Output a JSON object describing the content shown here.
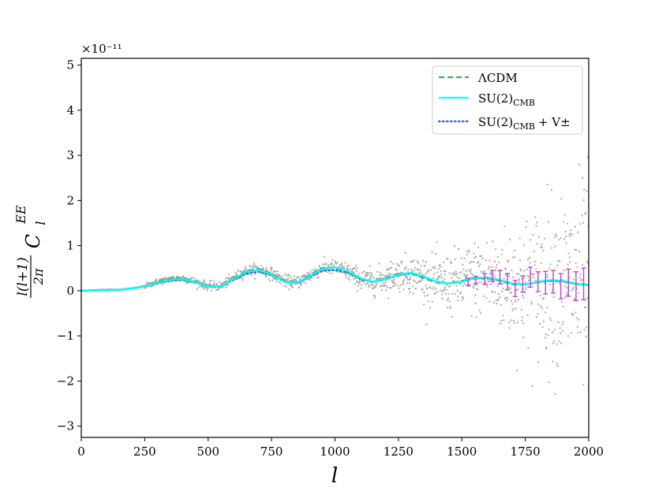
{
  "chart_data": {
    "type": "scatter",
    "title": "",
    "xlabel": "l",
    "ylabel": "l(l+1)/2π C_l^EE",
    "ylabel_parts": {
      "num": "l(l+1)",
      "den": "2π",
      "sym": "C",
      "sup": "EE",
      "sub": "l"
    },
    "y_offset_text": "×10⁻¹¹",
    "xlim": [
      0,
      2000
    ],
    "ylim": [
      -3.25,
      5.15
    ],
    "x_ticks": [
      0,
      250,
      500,
      750,
      1000,
      1250,
      1500,
      1750,
      2000
    ],
    "x_tick_labels": [
      "0",
      "250",
      "500",
      "750",
      "1000",
      "1250",
      "1500",
      "1750",
      "2000"
    ],
    "y_ticks": [
      -3,
      -2,
      -1,
      0,
      1,
      2,
      3,
      4,
      5
    ],
    "y_tick_labels": [
      "−3",
      "−2",
      "−1",
      "0",
      "1",
      "2",
      "3",
      "4",
      "5"
    ],
    "grid": false,
    "legend_position": "top-right",
    "legend": [
      {
        "label": "ΛCDM",
        "style": "dashed",
        "color": "#3fae5e"
      },
      {
        "label": "SU(2)_CMB",
        "label_main": "SU(2)",
        "label_sub": "CMB",
        "style": "solid",
        "color": "#00ffff"
      },
      {
        "label": "SU(2)_CMB + V±",
        "label_main": "SU(2)",
        "label_sub": "CMB",
        "label_extra": "+ V±",
        "style": "dotted",
        "color": "#4466cc"
      }
    ],
    "series": [
      {
        "name": "ΛCDM",
        "style": "dashed",
        "color": "#3fae5e",
        "x": [
          2,
          50,
          100,
          150,
          200,
          250,
          300,
          350,
          400,
          450,
          500,
          550,
          600,
          650,
          700,
          750,
          800,
          850,
          900,
          950,
          1000,
          1050,
          1100,
          1150,
          1200,
          1250,
          1300,
          1350,
          1400,
          1450,
          1500,
          1550,
          1600,
          1650,
          1700,
          1750,
          1800,
          1850,
          1900,
          1950,
          2000
        ],
        "y": [
          0.0,
          0.01,
          0.02,
          0.02,
          0.05,
          0.1,
          0.2,
          0.26,
          0.28,
          0.2,
          0.1,
          0.1,
          0.28,
          0.44,
          0.48,
          0.38,
          0.22,
          0.18,
          0.34,
          0.5,
          0.52,
          0.42,
          0.26,
          0.2,
          0.28,
          0.38,
          0.38,
          0.28,
          0.18,
          0.16,
          0.22,
          0.28,
          0.28,
          0.22,
          0.14,
          0.14,
          0.2,
          0.22,
          0.2,
          0.15,
          0.14
        ]
      },
      {
        "name": "SU(2)_CMB",
        "style": "solid",
        "color": "#00ffff",
        "x": [
          2,
          50,
          100,
          150,
          200,
          250,
          300,
          350,
          400,
          450,
          500,
          550,
          600,
          650,
          700,
          750,
          800,
          850,
          900,
          950,
          1000,
          1050,
          1100,
          1150,
          1200,
          1250,
          1300,
          1350,
          1400,
          1450,
          1500,
          1550,
          1600,
          1650,
          1700,
          1750,
          1800,
          1850,
          1900,
          1950,
          2000
        ],
        "y": [
          0.0,
          0.01,
          0.02,
          0.02,
          0.05,
          0.09,
          0.18,
          0.24,
          0.26,
          0.19,
          0.09,
          0.1,
          0.26,
          0.42,
          0.46,
          0.36,
          0.2,
          0.18,
          0.32,
          0.48,
          0.52,
          0.44,
          0.28,
          0.2,
          0.26,
          0.36,
          0.4,
          0.32,
          0.2,
          0.16,
          0.2,
          0.28,
          0.3,
          0.24,
          0.16,
          0.14,
          0.2,
          0.24,
          0.22,
          0.16,
          0.12
        ]
      },
      {
        "name": "SU(2)_CMB + V±",
        "style": "dotted",
        "color": "#4466cc",
        "x": [
          2,
          50,
          100,
          150,
          200,
          250,
          300,
          350,
          400,
          450,
          500,
          550,
          600,
          650,
          700,
          750,
          800,
          850,
          900,
          950,
          1000,
          1050,
          1100,
          1150,
          1200,
          1250,
          1300,
          1350,
          1400,
          1450,
          1500,
          1550,
          1600,
          1650,
          1700,
          1750,
          1800,
          1850,
          1900,
          1950,
          2000
        ],
        "y": [
          0.0,
          0.01,
          0.02,
          0.02,
          0.05,
          0.09,
          0.17,
          0.22,
          0.24,
          0.18,
          0.09,
          0.1,
          0.24,
          0.38,
          0.42,
          0.34,
          0.2,
          0.17,
          0.3,
          0.44,
          0.46,
          0.4,
          0.26,
          0.2,
          0.25,
          0.35,
          0.38,
          0.3,
          0.2,
          0.16,
          0.2,
          0.27,
          0.29,
          0.23,
          0.15,
          0.14,
          0.19,
          0.23,
          0.21,
          0.15,
          0.12
        ]
      }
    ],
    "scatter_color": "#a8a8a8",
    "errorbar_color": "#c040d0",
    "errorbars": [
      {
        "x": 1525,
        "y": 0.2,
        "err": 0.08
      },
      {
        "x": 1555,
        "y": 0.24,
        "err": 0.08
      },
      {
        "x": 1590,
        "y": 0.26,
        "err": 0.12
      },
      {
        "x": 1620,
        "y": 0.33,
        "err": 0.12
      },
      {
        "x": 1650,
        "y": 0.3,
        "err": 0.15
      },
      {
        "x": 1680,
        "y": 0.2,
        "err": 0.18
      },
      {
        "x": 1710,
        "y": 0.05,
        "err": 0.18
      },
      {
        "x": 1740,
        "y": 0.15,
        "err": 0.18
      },
      {
        "x": 1770,
        "y": 0.3,
        "err": 0.22
      },
      {
        "x": 1800,
        "y": 0.2,
        "err": 0.22
      },
      {
        "x": 1830,
        "y": 0.18,
        "err": 0.25
      },
      {
        "x": 1860,
        "y": 0.2,
        "err": 0.25
      },
      {
        "x": 1890,
        "y": 0.1,
        "err": 0.28
      },
      {
        "x": 1920,
        "y": 0.18,
        "err": 0.3
      },
      {
        "x": 1950,
        "y": 0.1,
        "err": 0.32
      },
      {
        "x": 1980,
        "y": 0.15,
        "err": 0.35
      }
    ]
  }
}
